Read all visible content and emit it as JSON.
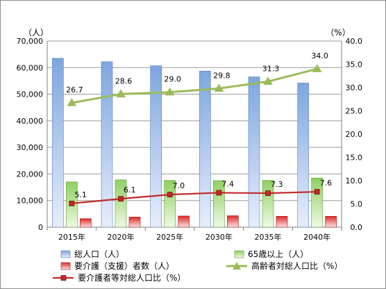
{
  "chart_data": {
    "type": "bar",
    "title": "",
    "categories": [
      "2015年",
      "2020年",
      "2025年",
      "2030年",
      "2035年",
      "2040年"
    ],
    "y_left_unit": "（人）",
    "y_right_unit": "（%）",
    "ylim_left": [
      0,
      70000
    ],
    "ylim_right": [
      0,
      40
    ],
    "y_left_ticks": [
      "0",
      "10,000",
      "20,000",
      "30,000",
      "40,000",
      "50,000",
      "60,000",
      "70,000"
    ],
    "y_right_ticks": [
      "0.0",
      "5.0",
      "10.0",
      "15.0",
      "20.0",
      "25.0",
      "30.0",
      "35.0",
      "40.0"
    ],
    "grid": true,
    "legend_position": "bottom",
    "series": [
      {
        "name": "総人口（人）",
        "kind": "bar",
        "axis": "left",
        "color": "#7ea6e0",
        "values": [
          63500,
          62200,
          60700,
          58700,
          56500,
          54200
        ]
      },
      {
        "name": "65歳以上（人）",
        "kind": "bar",
        "axis": "left",
        "color": "#8fd060",
        "values": [
          17000,
          17800,
          17600,
          17500,
          17600,
          18500
        ]
      },
      {
        "name": "要介護（支援）者数（人）",
        "kind": "bar",
        "axis": "left",
        "color": "#e03030",
        "values": [
          3200,
          3800,
          4200,
          4300,
          4100,
          4100
        ]
      },
      {
        "name": "高齢者対総人口比（%）",
        "kind": "line",
        "axis": "right",
        "color": "#9bbb59",
        "marker": "triangle",
        "values": [
          26.7,
          28.6,
          29.0,
          29.8,
          31.3,
          34.0
        ],
        "labels": [
          "26.7",
          "28.6",
          "29.0",
          "29.8",
          "31.3",
          "34.0"
        ]
      },
      {
        "name": "要介護者等対総人口比（%）",
        "kind": "line",
        "axis": "right",
        "color": "#c0292b",
        "marker": "square",
        "values": [
          5.1,
          6.1,
          7.0,
          7.4,
          7.3,
          7.6
        ],
        "labels": [
          "5.1",
          "6.1",
          "7.0",
          "7.4",
          "7.3",
          "7.6"
        ]
      }
    ]
  }
}
